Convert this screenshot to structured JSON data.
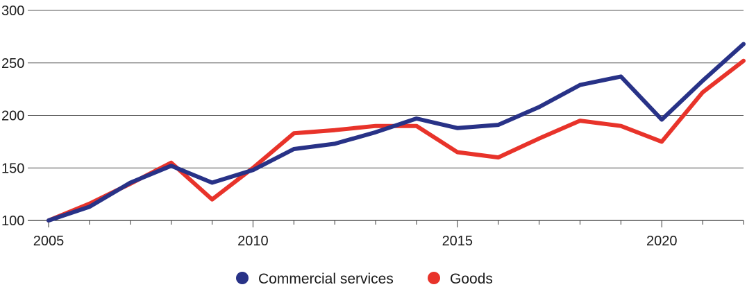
{
  "chart_data": {
    "type": "line",
    "x": [
      2005,
      2006,
      2007,
      2008,
      2009,
      2010,
      2011,
      2012,
      2013,
      2014,
      2015,
      2016,
      2017,
      2018,
      2019,
      2020,
      2021,
      2022
    ],
    "series": [
      {
        "name": "Commercial services",
        "color": "#283287",
        "values": [
          100,
          113,
          136,
          152,
          136,
          148,
          168,
          173,
          184,
          197,
          188,
          191,
          208,
          229,
          237,
          196,
          233,
          268
        ]
      },
      {
        "name": "Goods",
        "color": "#e8332a",
        "values": [
          100,
          116,
          135,
          155,
          120,
          150,
          183,
          186,
          190,
          190,
          165,
          160,
          178,
          195,
          190,
          175,
          222,
          252
        ]
      }
    ],
    "xlim": [
      2005,
      2022
    ],
    "ylim": [
      100,
      300
    ],
    "y_ticks": [
      100,
      150,
      200,
      250,
      300
    ],
    "y_tick_labels": [
      "100",
      "150",
      "200",
      "250",
      "300"
    ],
    "x_ticks_labeled": [
      2005,
      2010,
      2015,
      2020
    ],
    "x_tick_labels": [
      "2005",
      "2010",
      "2015",
      "2020"
    ],
    "grid": "horizontal",
    "legend_position": "bottom-center",
    "title": "",
    "xlabel": "",
    "ylabel": ""
  }
}
